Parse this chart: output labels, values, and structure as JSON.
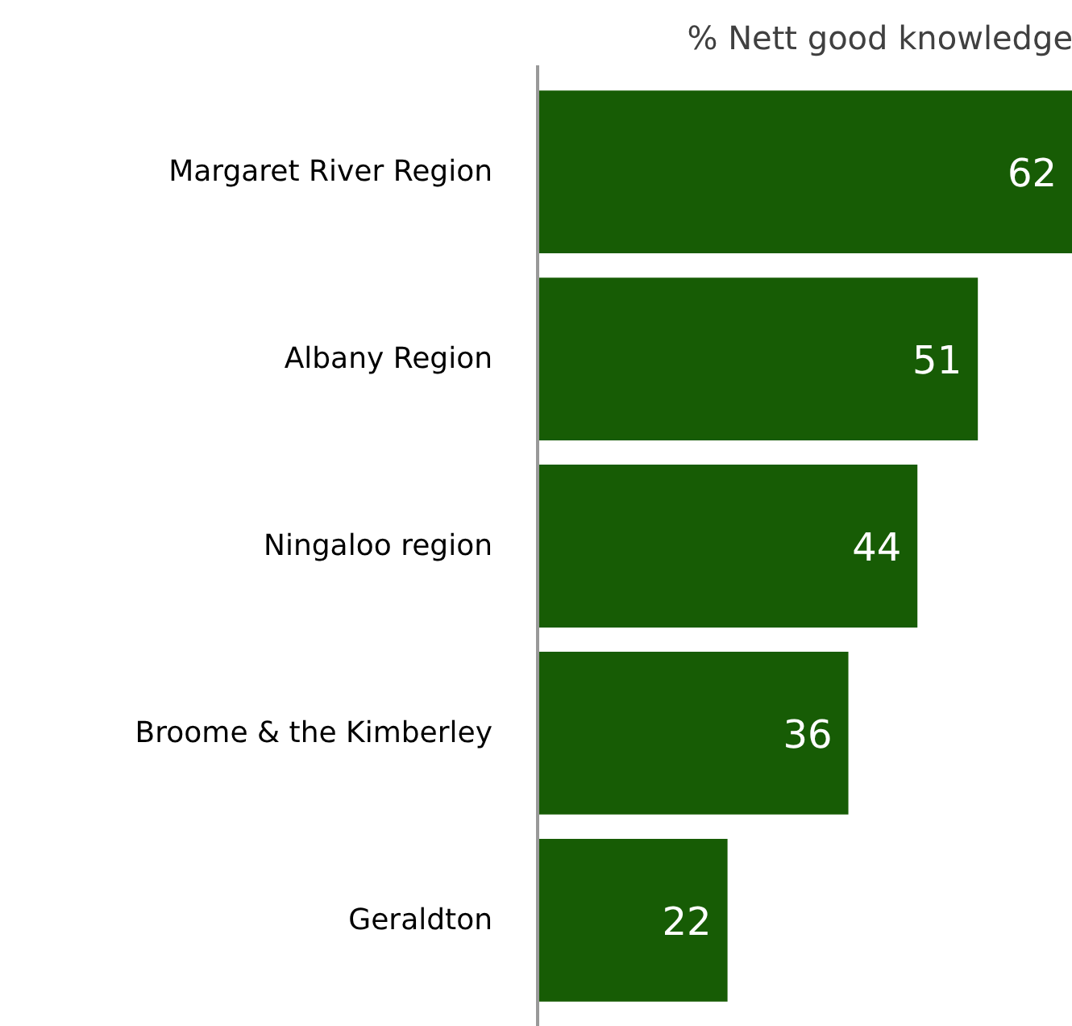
{
  "chart_data": {
    "type": "bar",
    "orientation": "horizontal",
    "title": "% Nett good knowledge",
    "categories": [
      "Margaret River Region",
      "Albany Region",
      "Ningaloo region",
      "Broome & the Kimberley",
      "Geraldton"
    ],
    "values": [
      62,
      51,
      44,
      36,
      22
    ],
    "color": "#175c05",
    "data_labels": true,
    "grid": false
  }
}
